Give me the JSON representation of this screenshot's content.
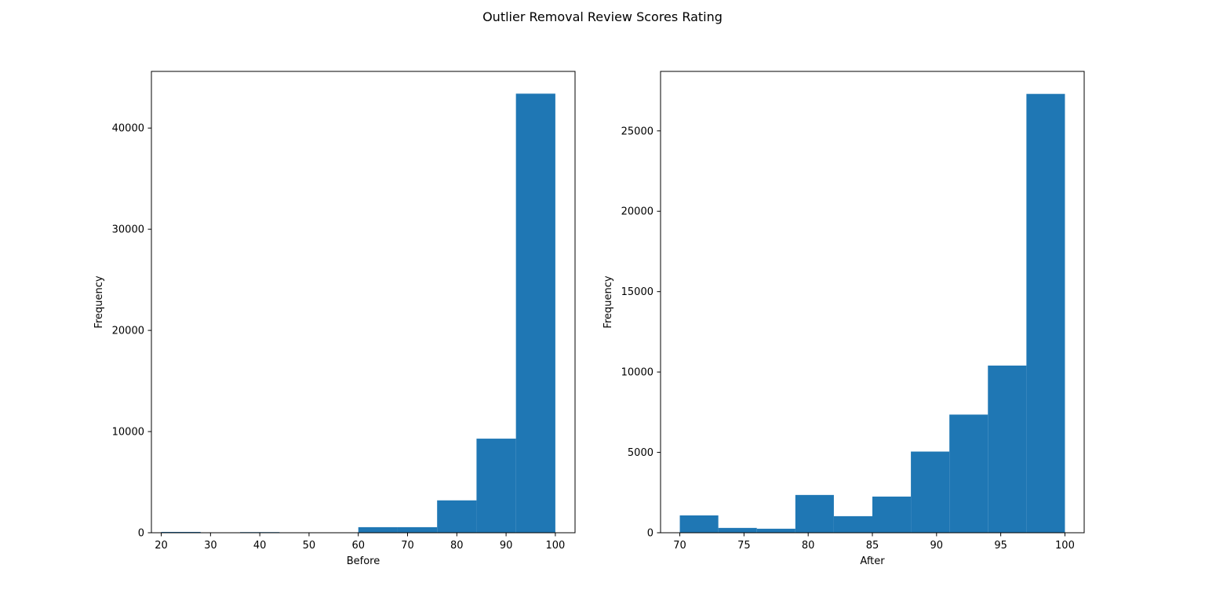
{
  "figure": {
    "title": "Outlier Removal Review Scores Rating"
  },
  "colors": {
    "bar": "#1f77b4",
    "axis": "#000000",
    "background": "#ffffff"
  },
  "chart_data": [
    {
      "type": "bar",
      "subtype": "histogram",
      "xlabel": "Before",
      "ylabel": "Frequency",
      "xlim": [
        18.0,
        104.0
      ],
      "ylim": [
        0,
        45600
      ],
      "xticks": [
        20,
        30,
        40,
        50,
        60,
        70,
        80,
        90,
        100
      ],
      "yticks": [
        0,
        10000,
        20000,
        30000,
        40000
      ],
      "bins": [
        {
          "x0": 20,
          "x1": 28,
          "value": 80
        },
        {
          "x0": 28,
          "x1": 36,
          "value": 0
        },
        {
          "x0": 36,
          "x1": 44,
          "value": 60
        },
        {
          "x0": 44,
          "x1": 52,
          "value": 0
        },
        {
          "x0": 52,
          "x1": 60,
          "value": 30
        },
        {
          "x0": 60,
          "x1": 68,
          "value": 550
        },
        {
          "x0": 68,
          "x1": 76,
          "value": 550
        },
        {
          "x0": 76,
          "x1": 84,
          "value": 3200
        },
        {
          "x0": 84,
          "x1": 92,
          "value": 9300
        },
        {
          "x0": 92,
          "x1": 100,
          "value": 43400
        }
      ]
    },
    {
      "type": "bar",
      "subtype": "histogram",
      "xlabel": "After",
      "ylabel": "Frequency",
      "xlim": [
        68.5,
        101.5
      ],
      "ylim": [
        0,
        28700
      ],
      "xticks": [
        70,
        75,
        80,
        85,
        90,
        95,
        100
      ],
      "yticks": [
        0,
        5000,
        10000,
        15000,
        20000,
        25000
      ],
      "bins": [
        {
          "x0": 70,
          "x1": 73,
          "value": 1080
        },
        {
          "x0": 73,
          "x1": 76,
          "value": 300
        },
        {
          "x0": 76,
          "x1": 79,
          "value": 250
        },
        {
          "x0": 79,
          "x1": 82,
          "value": 2350
        },
        {
          "x0": 82,
          "x1": 85,
          "value": 1030
        },
        {
          "x0": 85,
          "x1": 88,
          "value": 2250
        },
        {
          "x0": 88,
          "x1": 91,
          "value": 5050
        },
        {
          "x0": 91,
          "x1": 94,
          "value": 7350
        },
        {
          "x0": 94,
          "x1": 97,
          "value": 10400
        },
        {
          "x0": 97,
          "x1": 100,
          "value": 27300
        }
      ]
    }
  ]
}
